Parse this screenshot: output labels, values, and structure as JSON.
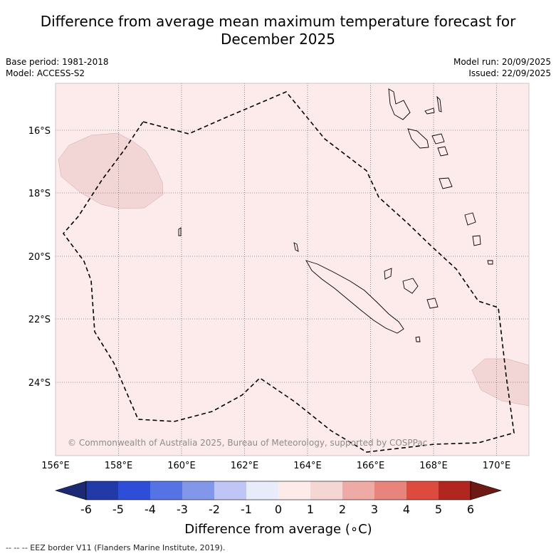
{
  "title": {
    "line1": "Difference from average mean maximum temperature forecast for",
    "line2": "December 2025"
  },
  "meta": {
    "base_period": "Base period: 1981-2018",
    "model": "Model: ACCESS-S2",
    "model_run": "Model run: 20/09/2025",
    "issued": "Issued: 22/09/2025"
  },
  "map": {
    "background_color": "#fcebea",
    "anomaly_patch_color": "#f2d6d5",
    "latitude_labels": [
      "16°S",
      "18°S",
      "20°S",
      "22°S",
      "24°S"
    ],
    "longitude_labels": [
      "156°E",
      "158°E",
      "160°E",
      "162°E",
      "164°E",
      "166°E",
      "168°E",
      "170°E"
    ],
    "copyright": "© Commonwealth of Australia 2025, Bureau of Meteorology, supported by COSPPac"
  },
  "colorbar": {
    "title": "Difference from average (∘C)",
    "tick_labels": [
      "-6",
      "-5",
      "-4",
      "-3",
      "-2",
      "-1",
      "0",
      "1",
      "2",
      "3",
      "4",
      "5",
      "6"
    ],
    "colors": [
      "#1c2a73",
      "#2239a8",
      "#2e4ed8",
      "#5673e6",
      "#8397ea",
      "#bfc6f5",
      "#e8ebfa",
      "#fdebe9",
      "#f5d6d3",
      "#eeaaa4",
      "#e7847c",
      "#dd4a3e",
      "#b1271f",
      "#6e1a14"
    ]
  },
  "footnote": "-- -- -- EEZ border V11 (Flanders Marine Institute, 2019)."
}
